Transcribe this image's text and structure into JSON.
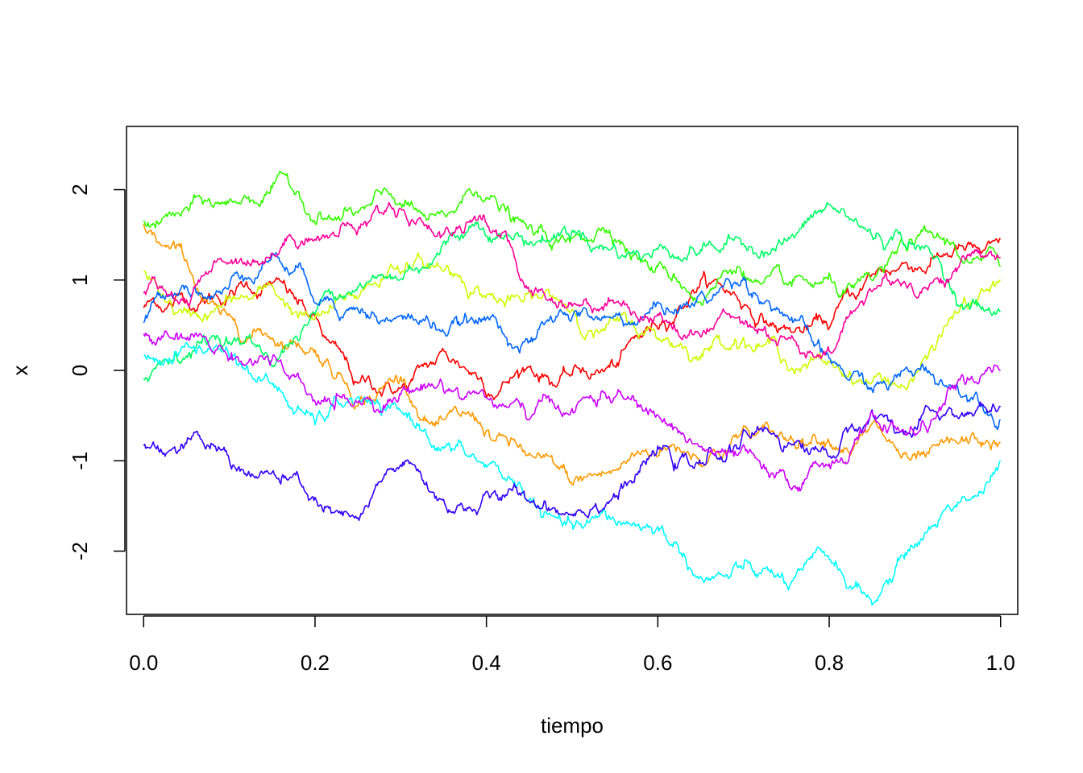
{
  "chart_data": {
    "type": "line",
    "title": "",
    "xlabel": "tiempo",
    "ylabel": "x",
    "xlim": [
      -0.02,
      1.02
    ],
    "ylim": [
      -2.7,
      2.7
    ],
    "x_ticks": [
      0.0,
      0.2,
      0.4,
      0.6,
      0.8,
      1.0
    ],
    "x_tick_labels": [
      "0.0",
      "0.2",
      "0.4",
      "0.6",
      "0.8",
      "1.0"
    ],
    "y_ticks": [
      -2,
      -1,
      0,
      1,
      2
    ],
    "y_tick_labels": [
      "-2",
      "-1",
      "0",
      "1",
      "2"
    ],
    "grid": false,
    "legend": "none",
    "series": [
      {
        "color": "#ff0000",
        "x": [
          0,
          0.05,
          0.1,
          0.15,
          0.2,
          0.25,
          0.3,
          0.35,
          0.4,
          0.45,
          0.5,
          0.55,
          0.6,
          0.65,
          0.7,
          0.75,
          0.8,
          0.85,
          0.9,
          0.95,
          1.0
        ],
        "y": [
          0.7,
          0.75,
          0.8,
          0.95,
          0.6,
          -0.15,
          -0.2,
          0.25,
          -0.25,
          0.05,
          -0.05,
          0.05,
          0.5,
          0.95,
          0.7,
          0.45,
          0.45,
          1.05,
          1.1,
          1.35,
          1.45
        ]
      },
      {
        "color": "#ff9900",
        "x": [
          0,
          0.05,
          0.1,
          0.15,
          0.2,
          0.25,
          0.3,
          0.35,
          0.4,
          0.45,
          0.5,
          0.55,
          0.6,
          0.65,
          0.7,
          0.75,
          0.8,
          0.85,
          0.9,
          0.95,
          1.0
        ],
        "y": [
          1.65,
          1.2,
          0.6,
          0.35,
          0.2,
          -0.4,
          -0.1,
          -0.55,
          -0.7,
          -0.95,
          -1.25,
          -1.1,
          -0.95,
          -1.05,
          -0.65,
          -0.75,
          -0.75,
          -0.6,
          -0.95,
          -0.8,
          -0.8
        ]
      },
      {
        "color": "#ccff00",
        "x": [
          0,
          0.05,
          0.1,
          0.15,
          0.2,
          0.25,
          0.3,
          0.35,
          0.4,
          0.45,
          0.5,
          0.55,
          0.6,
          0.65,
          0.7,
          0.75,
          0.8,
          0.85,
          0.9,
          0.95,
          1.0
        ],
        "y": [
          1.05,
          0.65,
          0.8,
          0.95,
          0.55,
          0.8,
          1.1,
          1.1,
          0.8,
          0.85,
          0.65,
          0.55,
          0.35,
          0.15,
          0.35,
          0.1,
          0.1,
          -0.15,
          -0.1,
          0.65,
          1.0
        ]
      },
      {
        "color": "#33ff00",
        "x": [
          0,
          0.05,
          0.1,
          0.15,
          0.2,
          0.25,
          0.3,
          0.35,
          0.4,
          0.45,
          0.5,
          0.55,
          0.6,
          0.65,
          0.7,
          0.75,
          0.8,
          0.85,
          0.9,
          0.95,
          1.0
        ],
        "y": [
          1.7,
          1.8,
          1.85,
          2.05,
          1.65,
          1.75,
          1.85,
          1.75,
          1.9,
          1.55,
          1.45,
          1.45,
          1.15,
          0.75,
          1.05,
          0.95,
          1.0,
          1.0,
          1.4,
          1.3,
          1.15
        ]
      },
      {
        "color": "#00ff66",
        "x": [
          0,
          0.05,
          0.1,
          0.15,
          0.2,
          0.25,
          0.3,
          0.35,
          0.4,
          0.45,
          0.5,
          0.55,
          0.6,
          0.65,
          0.7,
          0.75,
          0.8,
          0.85,
          0.9,
          0.95,
          1.0
        ],
        "y": [
          -0.1,
          0.15,
          0.3,
          0.05,
          0.65,
          0.9,
          1.0,
          1.4,
          1.5,
          1.4,
          1.5,
          1.4,
          1.35,
          1.3,
          1.4,
          1.45,
          1.85,
          1.5,
          1.4,
          0.7,
          0.65
        ]
      },
      {
        "color": "#00ffff",
        "x": [
          0,
          0.05,
          0.1,
          0.15,
          0.2,
          0.25,
          0.3,
          0.35,
          0.4,
          0.45,
          0.5,
          0.55,
          0.6,
          0.65,
          0.7,
          0.75,
          0.8,
          0.85,
          0.9,
          0.95,
          1.0
        ],
        "y": [
          0.15,
          0.3,
          0.2,
          -0.15,
          -0.55,
          -0.3,
          -0.45,
          -0.85,
          -1.05,
          -1.45,
          -1.7,
          -1.65,
          -1.75,
          -2.3,
          -2.2,
          -2.35,
          -2.05,
          -2.55,
          -1.95,
          -1.5,
          -1.0
        ]
      },
      {
        "color": "#0066ff",
        "x": [
          0,
          0.05,
          0.1,
          0.15,
          0.2,
          0.25,
          0.3,
          0.35,
          0.4,
          0.45,
          0.5,
          0.55,
          0.6,
          0.65,
          0.7,
          0.75,
          0.8,
          0.85,
          0.9,
          0.95,
          1.0
        ],
        "y": [
          0.55,
          0.95,
          0.9,
          1.25,
          0.75,
          0.7,
          0.6,
          0.45,
          0.55,
          0.3,
          0.55,
          0.6,
          0.75,
          0.85,
          1.0,
          0.6,
          0.15,
          -0.2,
          -0.05,
          -0.15,
          -0.55
        ]
      },
      {
        "color": "#3300ff",
        "x": [
          0,
          0.05,
          0.1,
          0.15,
          0.2,
          0.25,
          0.3,
          0.35,
          0.4,
          0.45,
          0.5,
          0.55,
          0.6,
          0.65,
          0.7,
          0.75,
          0.8,
          0.85,
          0.9,
          0.95,
          1.0
        ],
        "y": [
          -0.8,
          -0.8,
          -0.95,
          -1.15,
          -1.45,
          -1.65,
          -1.05,
          -1.45,
          -1.35,
          -1.45,
          -1.6,
          -1.35,
          -0.9,
          -1.0,
          -0.7,
          -0.85,
          -0.95,
          -0.45,
          -0.65,
          -0.5,
          -0.4
        ]
      },
      {
        "color": "#cc00ff",
        "x": [
          0,
          0.05,
          0.1,
          0.15,
          0.2,
          0.25,
          0.3,
          0.35,
          0.4,
          0.45,
          0.5,
          0.55,
          0.6,
          0.65,
          0.7,
          0.75,
          0.8,
          0.85,
          0.9,
          0.95,
          1.0
        ],
        "y": [
          0.4,
          0.35,
          0.1,
          0.1,
          -0.35,
          -0.35,
          -0.25,
          -0.15,
          -0.3,
          -0.55,
          -0.45,
          -0.3,
          -0.5,
          -0.85,
          -0.85,
          -1.2,
          -1.05,
          -0.45,
          -0.7,
          -0.15,
          0.0
        ]
      },
      {
        "color": "#ff0099",
        "x": [
          0,
          0.05,
          0.1,
          0.15,
          0.2,
          0.25,
          0.3,
          0.35,
          0.4,
          0.45,
          0.5,
          0.55,
          0.6,
          0.65,
          0.7,
          0.75,
          0.8,
          0.85,
          0.9,
          0.95,
          1.0
        ],
        "y": [
          0.9,
          0.75,
          1.2,
          1.3,
          1.45,
          1.5,
          1.8,
          1.5,
          1.65,
          0.9,
          0.75,
          0.75,
          0.6,
          0.4,
          0.55,
          0.35,
          0.25,
          0.9,
          0.85,
          1.1,
          1.25
        ]
      }
    ]
  }
}
